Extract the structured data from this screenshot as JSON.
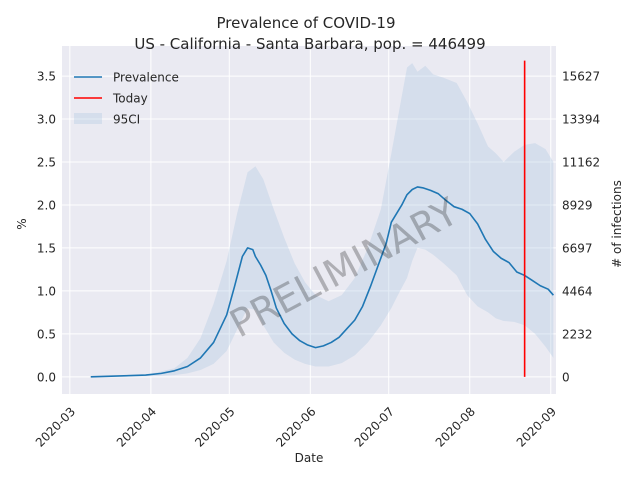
{
  "chart_data": {
    "type": "line",
    "title": "Prevalence of COVID-19",
    "subtitle": "US - California - Santa Barbara, pop. = 446499",
    "xlabel": "Date",
    "ylabel": "%",
    "ylabel_right": "# of infections",
    "watermark": "PRELIMINARY",
    "xlim": [
      "2020-02-27",
      "2020-09-03"
    ],
    "ylim": [
      -0.2,
      3.85
    ],
    "x_ticks": [
      "2020-03-01",
      "2020-04-01",
      "2020-05-01",
      "2020-06-01",
      "2020-07-01",
      "2020-08-01",
      "2020-09-01"
    ],
    "x_tick_labels": [
      "2020-03",
      "2020-04",
      "2020-05",
      "2020-06",
      "2020-07",
      "2020-08",
      "2020-09"
    ],
    "y_ticks": [
      0.0,
      0.5,
      1.0,
      1.5,
      2.0,
      2.5,
      3.0,
      3.5
    ],
    "y_tick_labels": [
      "0.0",
      "0.5",
      "1.0",
      "1.5",
      "2.0",
      "2.5",
      "3.0",
      "3.5"
    ],
    "y2_ticks": [
      0,
      0.5,
      1.0,
      1.5,
      2.0,
      2.5,
      3.0,
      3.5
    ],
    "y2_tick_labels": [
      "0",
      "2232",
      "4464",
      "6697",
      "8929",
      "11162",
      "13394",
      "15627"
    ],
    "legend": {
      "position": "top-left",
      "entries": [
        "Prevalence",
        "Today",
        "95CI"
      ]
    },
    "grid": true,
    "series": [
      {
        "name": "Prevalence",
        "color": "#1f77b4",
        "x": [
          "2020-03-09",
          "2020-03-20",
          "2020-03-30",
          "2020-04-05",
          "2020-04-10",
          "2020-04-15",
          "2020-04-20",
          "2020-04-25",
          "2020-04-30",
          "2020-05-03",
          "2020-05-06",
          "2020-05-08",
          "2020-05-10",
          "2020-05-11",
          "2020-05-13",
          "2020-05-15",
          "2020-05-17",
          "2020-05-19",
          "2020-05-22",
          "2020-05-25",
          "2020-05-28",
          "2020-05-31",
          "2020-06-03",
          "2020-06-06",
          "2020-06-09",
          "2020-06-12",
          "2020-06-15",
          "2020-06-18",
          "2020-06-21",
          "2020-06-24",
          "2020-06-27",
          "2020-06-30",
          "2020-07-02",
          "2020-07-04",
          "2020-07-06",
          "2020-07-08",
          "2020-07-10",
          "2020-07-12",
          "2020-07-14",
          "2020-07-17",
          "2020-07-20",
          "2020-07-23",
          "2020-07-26",
          "2020-07-29",
          "2020-08-01",
          "2020-08-04",
          "2020-08-07",
          "2020-08-10",
          "2020-08-13",
          "2020-08-16",
          "2020-08-19",
          "2020-08-22",
          "2020-08-25",
          "2020-08-28",
          "2020-08-31",
          "2020-09-02"
        ],
        "values": [
          0.0,
          0.01,
          0.02,
          0.04,
          0.07,
          0.12,
          0.22,
          0.4,
          0.72,
          1.05,
          1.4,
          1.5,
          1.48,
          1.4,
          1.3,
          1.18,
          1.0,
          0.8,
          0.62,
          0.5,
          0.42,
          0.37,
          0.34,
          0.36,
          0.4,
          0.46,
          0.56,
          0.66,
          0.82,
          1.05,
          1.3,
          1.55,
          1.8,
          1.9,
          2.0,
          2.12,
          2.18,
          2.21,
          2.2,
          2.17,
          2.13,
          2.05,
          1.98,
          1.95,
          1.9,
          1.78,
          1.6,
          1.46,
          1.38,
          1.33,
          1.22,
          1.18,
          1.12,
          1.06,
          1.02,
          0.95
        ]
      },
      {
        "name": "Today",
        "color": "#ff0000",
        "x": [
          "2020-08-22",
          "2020-08-22"
        ],
        "values": [
          0.0,
          3.68
        ]
      }
    ],
    "band": {
      "name": "95CI",
      "color": "#b0c8e3",
      "x": [
        "2020-03-09",
        "2020-03-30",
        "2020-04-10",
        "2020-04-15",
        "2020-04-20",
        "2020-04-25",
        "2020-04-30",
        "2020-05-04",
        "2020-05-08",
        "2020-05-11",
        "2020-05-14",
        "2020-05-18",
        "2020-05-22",
        "2020-05-26",
        "2020-05-30",
        "2020-06-03",
        "2020-06-08",
        "2020-06-13",
        "2020-06-18",
        "2020-06-23",
        "2020-06-28",
        "2020-07-02",
        "2020-07-05",
        "2020-07-08",
        "2020-07-10",
        "2020-07-12",
        "2020-07-15",
        "2020-07-18",
        "2020-07-22",
        "2020-07-27",
        "2020-07-31",
        "2020-08-04",
        "2020-08-08",
        "2020-08-11",
        "2020-08-14",
        "2020-08-18",
        "2020-08-22",
        "2020-08-26",
        "2020-08-30",
        "2020-09-02"
      ],
      "upper": [
        0.0,
        0.02,
        0.1,
        0.22,
        0.45,
        0.85,
        1.35,
        1.9,
        2.38,
        2.45,
        2.3,
        1.95,
        1.62,
        1.32,
        1.1,
        0.95,
        0.88,
        0.95,
        1.15,
        1.5,
        1.95,
        2.6,
        3.1,
        3.6,
        3.65,
        3.55,
        3.62,
        3.52,
        3.48,
        3.42,
        3.2,
        2.95,
        2.68,
        2.6,
        2.5,
        2.62,
        2.7,
        2.72,
        2.65,
        2.5
      ],
      "lower": [
        0.0,
        0.005,
        0.02,
        0.04,
        0.08,
        0.15,
        0.3,
        0.55,
        0.8,
        0.78,
        0.6,
        0.4,
        0.28,
        0.2,
        0.15,
        0.12,
        0.12,
        0.16,
        0.25,
        0.4,
        0.6,
        0.8,
        0.98,
        1.15,
        1.35,
        1.5,
        1.48,
        1.42,
        1.32,
        1.18,
        0.95,
        0.82,
        0.75,
        0.68,
        0.65,
        0.64,
        0.6,
        0.5,
        0.35,
        0.22
      ]
    }
  }
}
